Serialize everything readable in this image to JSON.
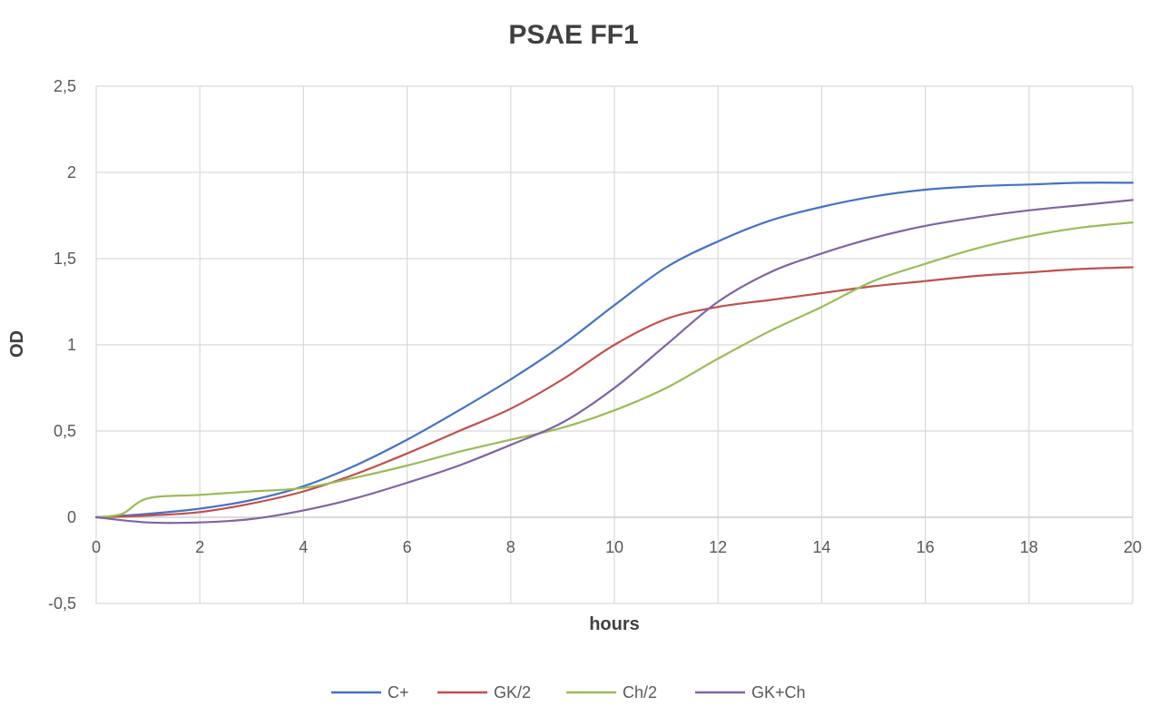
{
  "chart_data": {
    "type": "line",
    "title": "PSAE FF1",
    "xlabel": "hours",
    "ylabel": "OD",
    "xlim": [
      0,
      20
    ],
    "ylim": [
      -0.5,
      2.5
    ],
    "x_ticks": [
      0,
      2,
      4,
      6,
      8,
      10,
      12,
      14,
      16,
      18,
      20
    ],
    "y_ticks": [
      -0.5,
      0,
      0.5,
      1,
      1.5,
      2,
      2.5
    ],
    "y_tick_labels": [
      "-0,5",
      "0",
      "0,5",
      "1",
      "1,5",
      "2",
      "2,5"
    ],
    "grid": true,
    "legend_position": "bottom",
    "series": [
      {
        "name": "C+",
        "color": "#4472c4",
        "x": [
          0,
          1,
          2,
          3,
          4,
          5,
          6,
          7,
          8,
          9,
          10,
          11,
          12,
          13,
          14,
          15,
          16,
          17,
          18,
          19,
          20
        ],
        "values": [
          0,
          0.02,
          0.05,
          0.1,
          0.18,
          0.3,
          0.45,
          0.62,
          0.8,
          1.0,
          1.23,
          1.45,
          1.6,
          1.72,
          1.8,
          1.86,
          1.9,
          1.92,
          1.93,
          1.94,
          1.94
        ]
      },
      {
        "name": "GK/2",
        "color": "#c0504d",
        "x": [
          0,
          1,
          2,
          3,
          4,
          5,
          6,
          7,
          8,
          9,
          10,
          11,
          12,
          13,
          14,
          15,
          16,
          17,
          18,
          19,
          20
        ],
        "values": [
          0,
          0.01,
          0.03,
          0.08,
          0.15,
          0.25,
          0.37,
          0.5,
          0.63,
          0.8,
          1.0,
          1.15,
          1.22,
          1.26,
          1.3,
          1.34,
          1.37,
          1.4,
          1.42,
          1.44,
          1.45
        ]
      },
      {
        "name": "Ch/2",
        "color": "#9bbb59",
        "x": [
          0,
          0.5,
          1,
          2,
          3,
          4,
          5,
          6,
          7,
          8,
          9,
          10,
          11,
          12,
          13,
          14,
          15,
          16,
          17,
          18,
          19,
          20
        ],
        "values": [
          0,
          0.02,
          0.11,
          0.13,
          0.15,
          0.17,
          0.23,
          0.3,
          0.38,
          0.45,
          0.52,
          0.62,
          0.75,
          0.92,
          1.08,
          1.22,
          1.37,
          1.47,
          1.56,
          1.63,
          1.68,
          1.71
        ]
      },
      {
        "name": "GK+Ch",
        "color": "#8064a2",
        "x": [
          0,
          1,
          2,
          3,
          4,
          5,
          6,
          7,
          8,
          9,
          10,
          11,
          12,
          13,
          14,
          15,
          16,
          17,
          18,
          19,
          20
        ],
        "values": [
          0,
          -0.03,
          -0.03,
          -0.01,
          0.04,
          0.11,
          0.2,
          0.3,
          0.42,
          0.55,
          0.75,
          1.0,
          1.25,
          1.42,
          1.53,
          1.62,
          1.69,
          1.74,
          1.78,
          1.81,
          1.84
        ]
      }
    ]
  }
}
